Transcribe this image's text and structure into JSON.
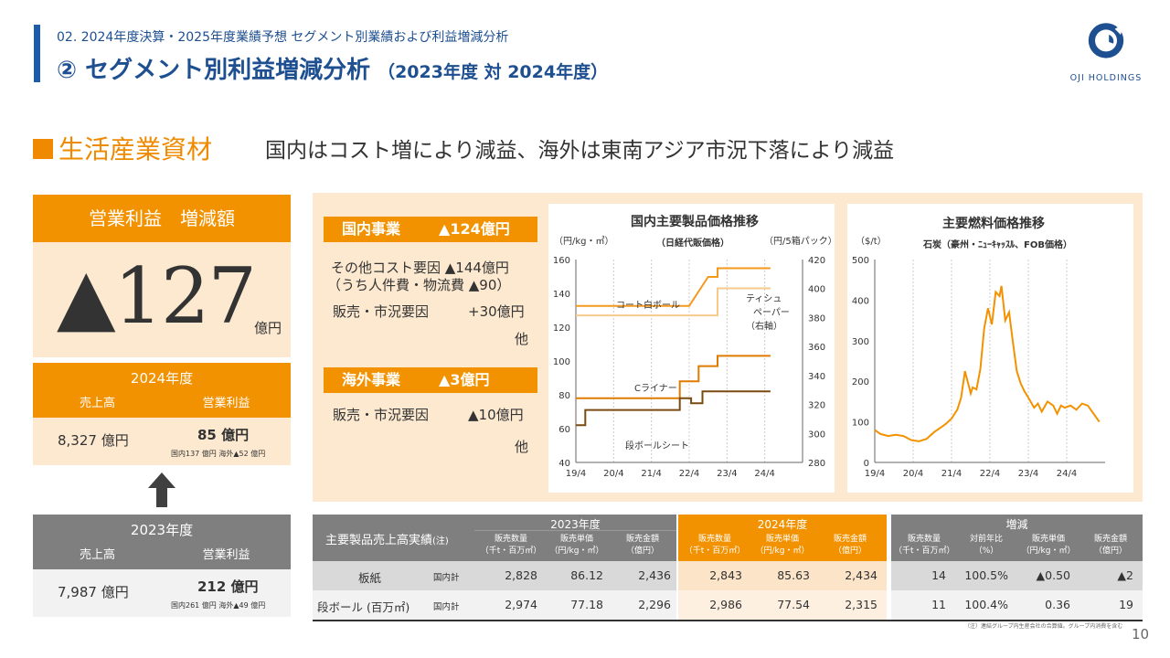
{
  "header": {
    "subtitle": "02. 2024年度決算・2025年度業績予想 セグメント別業績および利益増減分析",
    "title": "② セグメント別利益増減分析",
    "title_period": "（2023年度 対 2024年度）",
    "logo_text": "OJI HOLDINGS"
  },
  "section": {
    "name": "生活産業資材",
    "summary": "国内はコスト増により減益、海外は東南アジア市況下落により減益"
  },
  "kpi": {
    "label": "営業利益　増減額",
    "value": "▲127",
    "unit": "億円"
  },
  "fy2024": {
    "label": "2024年度",
    "col_sales": "売上高",
    "col_profit": "営業利益",
    "sales": "8,327 億円",
    "profit": "85 億円",
    "split": "国内137 億円 海外▲52 億円"
  },
  "fy2023": {
    "label": "2023年度",
    "col_sales": "売上高",
    "col_profit": "営業利益",
    "sales": "7,987 億円",
    "profit": "212 億円",
    "split": "国内261 億円 海外▲49 億円"
  },
  "domestic": {
    "tag": "国内事業",
    "value": "▲124億円",
    "line1": "その他コスト要因 ▲144億円",
    "line2": "（うち人件費・物流費 ▲90）",
    "line3_label": "販売・市況要因",
    "line3_value": "+30億円",
    "other": "他"
  },
  "overseas": {
    "tag": "海外事業",
    "value": "▲3億円",
    "line1_label": "販売・市況要因",
    "line1_value": "▲10億円",
    "other": "他"
  },
  "chart1": {
    "title": "国内主要製品価格推移",
    "subtitle": "（日経代販価格）",
    "left_unit": "（円/kg・㎡）",
    "right_unit": "（円/5箱パック）",
    "labels": {
      "coat": "コート白ボール",
      "tissue1": "ティシュ",
      "tissue2": "ペーパー",
      "tissue3": "（右軸）",
      "cliner": "Cライナー",
      "danboard": "段ボールシート"
    }
  },
  "chart2": {
    "title": "主要燃料価格推移",
    "subtitle": "石炭（豪州・ﾆｭｰｷｬｯｽﾙ、FOB価格）",
    "unit": "（$/t）"
  },
  "chart_data": [
    {
      "type": "line",
      "title": "国内主要製品価格推移",
      "x_ticks": [
        "19/4",
        "20/4",
        "21/4",
        "22/4",
        "23/4",
        "24/4"
      ],
      "ylim": [
        40,
        160
      ],
      "y_ticks": [
        40,
        60,
        80,
        100,
        120,
        140,
        160
      ],
      "y2lim": [
        280,
        420
      ],
      "y2_ticks": [
        280,
        300,
        320,
        340,
        360,
        380,
        400,
        420
      ],
      "series": [
        {
          "name": "コート白ボール",
          "axis": "left",
          "x": [
            2019.25,
            2022.25,
            2022.5,
            2023.0,
            2023.0,
            2024.4
          ],
          "y": [
            127,
            127,
            127,
            127,
            143,
            143
          ]
        },
        {
          "name": "ティシュペーパー",
          "axis": "right",
          "x": [
            2019.25,
            2022.25,
            2022.75,
            2023.0,
            2023.0,
            2024.4
          ],
          "y": [
            388,
            388,
            408,
            408,
            414,
            414
          ]
        },
        {
          "name": "Cライナー",
          "axis": "left",
          "x": [
            2019.25,
            2022.0,
            2022.0,
            2022.5,
            2022.5,
            2023.0,
            2023.0,
            2024.4
          ],
          "y": [
            78,
            78,
            88,
            88,
            97,
            97,
            103,
            103
          ]
        },
        {
          "name": "段ボールシート",
          "axis": "left",
          "x": [
            2019.25,
            2019.5,
            2019.5,
            2022.0,
            2022.0,
            2022.3,
            2022.3,
            2022.6,
            2022.6,
            2024.4
          ],
          "y": [
            62,
            62,
            71,
            71,
            78,
            78,
            75,
            75,
            82,
            82
          ]
        }
      ]
    },
    {
      "type": "line",
      "title": "主要燃料価格推移",
      "x_ticks": [
        "19/4",
        "20/4",
        "21/4",
        "22/4",
        "23/4",
        "24/4"
      ],
      "ylim": [
        0,
        500
      ],
      "y_ticks": [
        0,
        100,
        200,
        300,
        400,
        500
      ],
      "series": [
        {
          "name": "石炭",
          "x": [
            2019.25,
            2019.4,
            2019.6,
            2019.8,
            2020.0,
            2020.2,
            2020.4,
            2020.6,
            2020.8,
            2021.0,
            2021.1,
            2021.25,
            2021.4,
            2021.5,
            2021.6,
            2021.75,
            2021.8,
            2021.9,
            2022.0,
            2022.1,
            2022.2,
            2022.3,
            2022.4,
            2022.5,
            2022.55,
            2022.65,
            2022.75,
            2022.85,
            2022.95,
            2023.05,
            2023.15,
            2023.25,
            2023.4,
            2023.5,
            2023.6,
            2023.75,
            2023.9,
            2024.0,
            2024.1,
            2024.2,
            2024.35,
            2024.5,
            2024.65,
            2024.8,
            2024.95,
            2025.1
          ],
          "y": [
            80,
            70,
            65,
            68,
            65,
            55,
            52,
            58,
            75,
            88,
            95,
            108,
            130,
            160,
            225,
            170,
            185,
            180,
            230,
            330,
            380,
            340,
            420,
            410,
            435,
            350,
            370,
            295,
            225,
            195,
            175,
            160,
            135,
            145,
            125,
            150,
            140,
            120,
            140,
            135,
            140,
            130,
            145,
            140,
            120,
            100
          ]
        }
      ]
    }
  ],
  "table": {
    "title": "主要製品売上高実績",
    "title_note": "(注)",
    "col_2023": "2023年度",
    "col_2024": "2024年度",
    "col_diff": "増減",
    "sub_headers": [
      {
        "a": "販売数量",
        "b": "（千t・百万㎡）"
      },
      {
        "a": "販売単価",
        "b": "（円/kg・㎡）"
      },
      {
        "a": "販売金額",
        "b": "（億円）"
      }
    ],
    "diff_headers": [
      {
        "a": "販売数量",
        "b": "（千t・百万㎡）"
      },
      {
        "a": "対前年比",
        "b": "（%）"
      },
      {
        "a": "販売単価",
        "b": "（円/kg・㎡）"
      },
      {
        "a": "販売金額",
        "b": "（億円）"
      }
    ],
    "rows": [
      {
        "name": "板紙",
        "sub": "国内計",
        "q23": "2,828",
        "p23": "86.12",
        "s23": "2,436",
        "q24": "2,843",
        "p24": "85.63",
        "s24": "2,434",
        "dq": "14",
        "dr": "100.5%",
        "dp": "▲0.50",
        "ds": "▲2"
      },
      {
        "name": "段ボール (百万㎡)",
        "sub": "国内計",
        "q23": "2,974",
        "p23": "77.18",
        "s23": "2,296",
        "q24": "2,986",
        "p24": "77.54",
        "s24": "2,315",
        "dq": "11",
        "dr": "100.4%",
        "dp": "0.36",
        "ds": "19"
      }
    ],
    "note": "（注）連結グループ内生産会社の合算値。グループ内消費を含む"
  },
  "page_number": "10",
  "colors": {
    "accent": "#f39200",
    "navy": "#1d4f91",
    "gray": "#7f7f7f",
    "light": "#fde9d0"
  }
}
